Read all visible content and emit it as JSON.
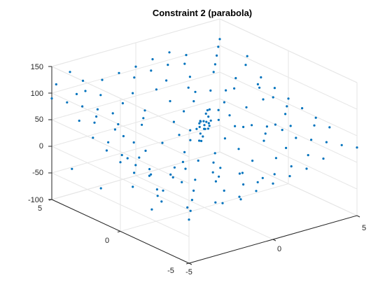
{
  "chart_data": {
    "type": "scatter",
    "projection": "3d",
    "title": "Constraint 2 (parabola)",
    "xlabel": "",
    "ylabel": "",
    "zlabel": "",
    "grid": true,
    "xlim": [
      -5,
      5
    ],
    "ylim": [
      -5,
      5
    ],
    "zlim": [
      -100,
      150
    ],
    "xticks": [
      -5,
      0,
      5
    ],
    "yticks": [
      -5,
      0,
      5
    ],
    "zticks": [
      -100,
      -50,
      0,
      50,
      100,
      150
    ],
    "xtick_labels": [
      "-5",
      "0",
      "5"
    ],
    "ytick_labels": [
      "-5",
      "0",
      "5"
    ],
    "ztick_labels": [
      "-100",
      "-50",
      "0",
      "50",
      "100",
      "150"
    ],
    "marker_color": "#0072BD",
    "series": [
      {
        "points": [
          [
            0.0,
            0.0,
            55
          ],
          [
            0.2,
            0.1,
            58
          ],
          [
            -0.2,
            0.1,
            52
          ],
          [
            0.1,
            -0.2,
            60
          ],
          [
            -0.1,
            -0.1,
            50
          ],
          [
            0.3,
            -0.1,
            62
          ],
          [
            -0.3,
            0.2,
            48
          ],
          [
            0.2,
            0.3,
            57
          ],
          [
            -0.2,
            -0.3,
            53
          ],
          [
            0.4,
            0.2,
            65
          ],
          [
            -0.4,
            -0.2,
            45
          ],
          [
            0.1,
            0.4,
            56
          ],
          [
            -0.1,
            -0.4,
            54
          ],
          [
            0.0,
            0.3,
            59
          ],
          [
            0.3,
            0.0,
            51
          ],
          [
            -0.3,
            0.0,
            61
          ],
          [
            0.5,
            0.5,
            66
          ],
          [
            -0.5,
            -0.5,
            44
          ],
          [
            0.6,
            -0.3,
            63
          ],
          [
            -0.6,
            0.3,
            47
          ],
          [
            0.8,
            0.6,
            70
          ],
          [
            -0.8,
            -0.6,
            40
          ],
          [
            1.0,
            0.2,
            72
          ],
          [
            -1.0,
            -0.2,
            38
          ],
          [
            2.0,
            2.0,
            78
          ],
          [
            1.5,
            2.5,
            74
          ],
          [
            2.5,
            1.5,
            80
          ],
          [
            3.0,
            3.0,
            92
          ],
          [
            2.0,
            3.5,
            86
          ],
          [
            3.5,
            2.0,
            88
          ],
          [
            1.0,
            4.0,
            82
          ],
          [
            4.0,
            1.0,
            84
          ],
          [
            3.5,
            3.5,
            96
          ],
          [
            2.5,
            4.5,
            94
          ],
          [
            4.5,
            2.5,
            98
          ],
          [
            4.0,
            4.0,
            102
          ],
          [
            1.5,
            3.0,
            76
          ],
          [
            3.0,
            1.5,
            79
          ],
          [
            2.0,
            1.0,
            68
          ],
          [
            1.0,
            2.0,
            67
          ],
          [
            5.0,
            3.0,
            104
          ],
          [
            3.0,
            5.0,
            100
          ],
          [
            4.5,
            4.5,
            108
          ],
          [
            5.0,
            5.0,
            112
          ],
          [
            -2.0,
            -2.0,
            30
          ],
          [
            -1.5,
            -2.5,
            28
          ],
          [
            -2.5,
            -1.5,
            26
          ],
          [
            -3.0,
            -3.0,
            15
          ],
          [
            -2.0,
            -3.5,
            18
          ],
          [
            -3.5,
            -2.0,
            12
          ],
          [
            -1.0,
            -4.0,
            22
          ],
          [
            -4.0,
            -1.0,
            10
          ],
          [
            -3.5,
            -3.5,
            5
          ],
          [
            -2.5,
            -4.5,
            8
          ],
          [
            -4.5,
            -2.5,
            2
          ],
          [
            -4.0,
            -4.0,
            -2
          ],
          [
            -1.5,
            -3.0,
            24
          ],
          [
            -3.0,
            -1.5,
            20
          ],
          [
            -2.0,
            -1.0,
            34
          ],
          [
            -1.0,
            -2.0,
            35
          ],
          [
            -5.0,
            -3.0,
            -8
          ],
          [
            -3.0,
            -5.0,
            -5
          ],
          [
            -4.5,
            -4.5,
            -12
          ],
          [
            -5.0,
            -5.0,
            -18
          ],
          [
            2.0,
            -2.0,
            45
          ],
          [
            2.5,
            -1.5,
            48
          ],
          [
            1.5,
            -2.5,
            42
          ],
          [
            3.0,
            -3.0,
            40
          ],
          [
            3.5,
            -2.0,
            46
          ],
          [
            2.0,
            -3.5,
            36
          ],
          [
            4.0,
            -1.0,
            52
          ],
          [
            1.0,
            -4.0,
            32
          ],
          [
            3.5,
            -3.5,
            38
          ],
          [
            4.5,
            -2.5,
            44
          ],
          [
            2.5,
            -4.5,
            30
          ],
          [
            4.0,
            -4.0,
            35
          ],
          [
            5.0,
            -3.0,
            42
          ],
          [
            3.0,
            -5.0,
            25
          ],
          [
            5.0,
            -5.0,
            28
          ],
          [
            4.5,
            -4.5,
            31
          ],
          [
            1.5,
            -1.0,
            50
          ],
          [
            2.0,
            -1.0,
            49
          ],
          [
            3.0,
            -1.5,
            47
          ],
          [
            3.0,
            -2.0,
            43
          ],
          [
            -2.0,
            2.0,
            62
          ],
          [
            -1.5,
            2.5,
            66
          ],
          [
            -2.5,
            1.5,
            60
          ],
          [
            -3.0,
            3.0,
            68
          ],
          [
            -2.0,
            3.5,
            72
          ],
          [
            -3.5,
            2.0,
            64
          ],
          [
            -1.0,
            4.0,
            76
          ],
          [
            -4.0,
            1.0,
            58
          ],
          [
            -3.5,
            3.5,
            74
          ],
          [
            -2.5,
            4.5,
            80
          ],
          [
            -4.5,
            2.5,
            70
          ],
          [
            -4.0,
            4.0,
            78
          ],
          [
            -5.0,
            3.0,
            72
          ],
          [
            -3.0,
            5.0,
            86
          ],
          [
            -5.0,
            5.0,
            90
          ],
          [
            -4.5,
            4.5,
            84
          ],
          [
            -4.9,
            4.8,
            118
          ],
          [
            -4.0,
            4.9,
            132
          ],
          [
            -4.5,
            3.8,
            108
          ],
          [
            -3.8,
            4.2,
            122
          ],
          [
            -4.8,
            2.0,
            90
          ],
          [
            -4.5,
            1.0,
            75
          ],
          [
            -4.2,
            0.0,
            60
          ],
          [
            -4.7,
            -1.0,
            48
          ],
          [
            -4.9,
            -2.0,
            40
          ],
          [
            -4.3,
            -2.8,
            34
          ],
          [
            0.0,
            5.0,
            105
          ],
          [
            1.0,
            5.0,
            110
          ],
          [
            -1.0,
            5.0,
            102
          ],
          [
            2.0,
            5.0,
            114
          ],
          [
            -2.0,
            5.0,
            98
          ],
          [
            0.5,
            4.5,
            99
          ],
          [
            -0.5,
            4.5,
            95
          ],
          [
            1.5,
            4.5,
            101
          ],
          [
            5.0,
            0.0,
            60
          ],
          [
            5.0,
            1.0,
            68
          ],
          [
            5.0,
            -1.0,
            54
          ],
          [
            5.0,
            2.0,
            76
          ],
          [
            5.0,
            -2.0,
            48
          ],
          [
            4.5,
            0.5,
            61
          ],
          [
            4.5,
            -0.5,
            56
          ],
          [
            4.5,
            1.5,
            67
          ],
          [
            0.0,
            -5.0,
            5
          ],
          [
            1.0,
            -5.0,
            10
          ],
          [
            -1.0,
            -5.0,
            0
          ],
          [
            2.0,
            -5.0,
            15
          ],
          [
            -2.0,
            -5.0,
            -2
          ],
          [
            0.5,
            -4.5,
            12
          ],
          [
            -0.5,
            -4.5,
            6
          ],
          [
            1.5,
            -4.5,
            18
          ],
          [
            -5.0,
            0.0,
            30
          ],
          [
            -5.0,
            1.0,
            40
          ],
          [
            -5.0,
            -1.0,
            22
          ],
          [
            -5.0,
            2.0,
            52
          ],
          [
            -4.5,
            0.5,
            33
          ],
          [
            -4.5,
            -0.5,
            26
          ],
          [
            -4.5,
            1.5,
            45
          ],
          [
            -4.5,
            -1.5,
            18
          ],
          [
            1.0,
            1.0,
            62
          ],
          [
            -1.0,
            1.0,
            58
          ],
          [
            1.0,
            -1.0,
            56
          ],
          [
            -1.0,
            -1.0,
            46
          ],
          [
            0.0,
            1.5,
            63
          ],
          [
            1.5,
            0.0,
            60
          ],
          [
            0.0,
            -1.5,
            48
          ],
          [
            -1.5,
            0.0,
            50
          ],
          [
            0.0,
            2.5,
            70
          ],
          [
            2.5,
            0.0,
            66
          ],
          [
            0.0,
            -2.5,
            40
          ],
          [
            -2.5,
            0.0,
            44
          ],
          [
            0.0,
            3.5,
            80
          ],
          [
            3.5,
            0.0,
            72
          ],
          [
            0.0,
            -3.5,
            30
          ],
          [
            -3.5,
            0.0,
            38
          ],
          [
            -4.2,
            2.4,
            -55
          ],
          [
            -3.2,
            1.3,
            -48
          ],
          [
            -2.7,
            0.1,
            -55
          ],
          [
            -3.7,
            -0.7,
            -62
          ],
          [
            -2.4,
            -1.7,
            -58
          ],
          [
            -1.3,
            -2.4,
            -50
          ],
          [
            -0.2,
            -2.9,
            -48
          ],
          [
            -1.1,
            0.3,
            -46
          ],
          [
            0.1,
            1.5,
            -46
          ],
          [
            1.0,
            0.6,
            -50
          ],
          [
            2.1,
            0.0,
            -55
          ],
          [
            2.9,
            -0.7,
            -62
          ],
          [
            1.5,
            -1.0,
            -58
          ],
          [
            0.6,
            -0.1,
            -55
          ],
          [
            -2.0,
            1.0,
            -60
          ],
          [
            -4.7,
            3.9,
            -32
          ],
          [
            -1.8,
            3.4,
            -32
          ]
        ]
      }
    ]
  }
}
